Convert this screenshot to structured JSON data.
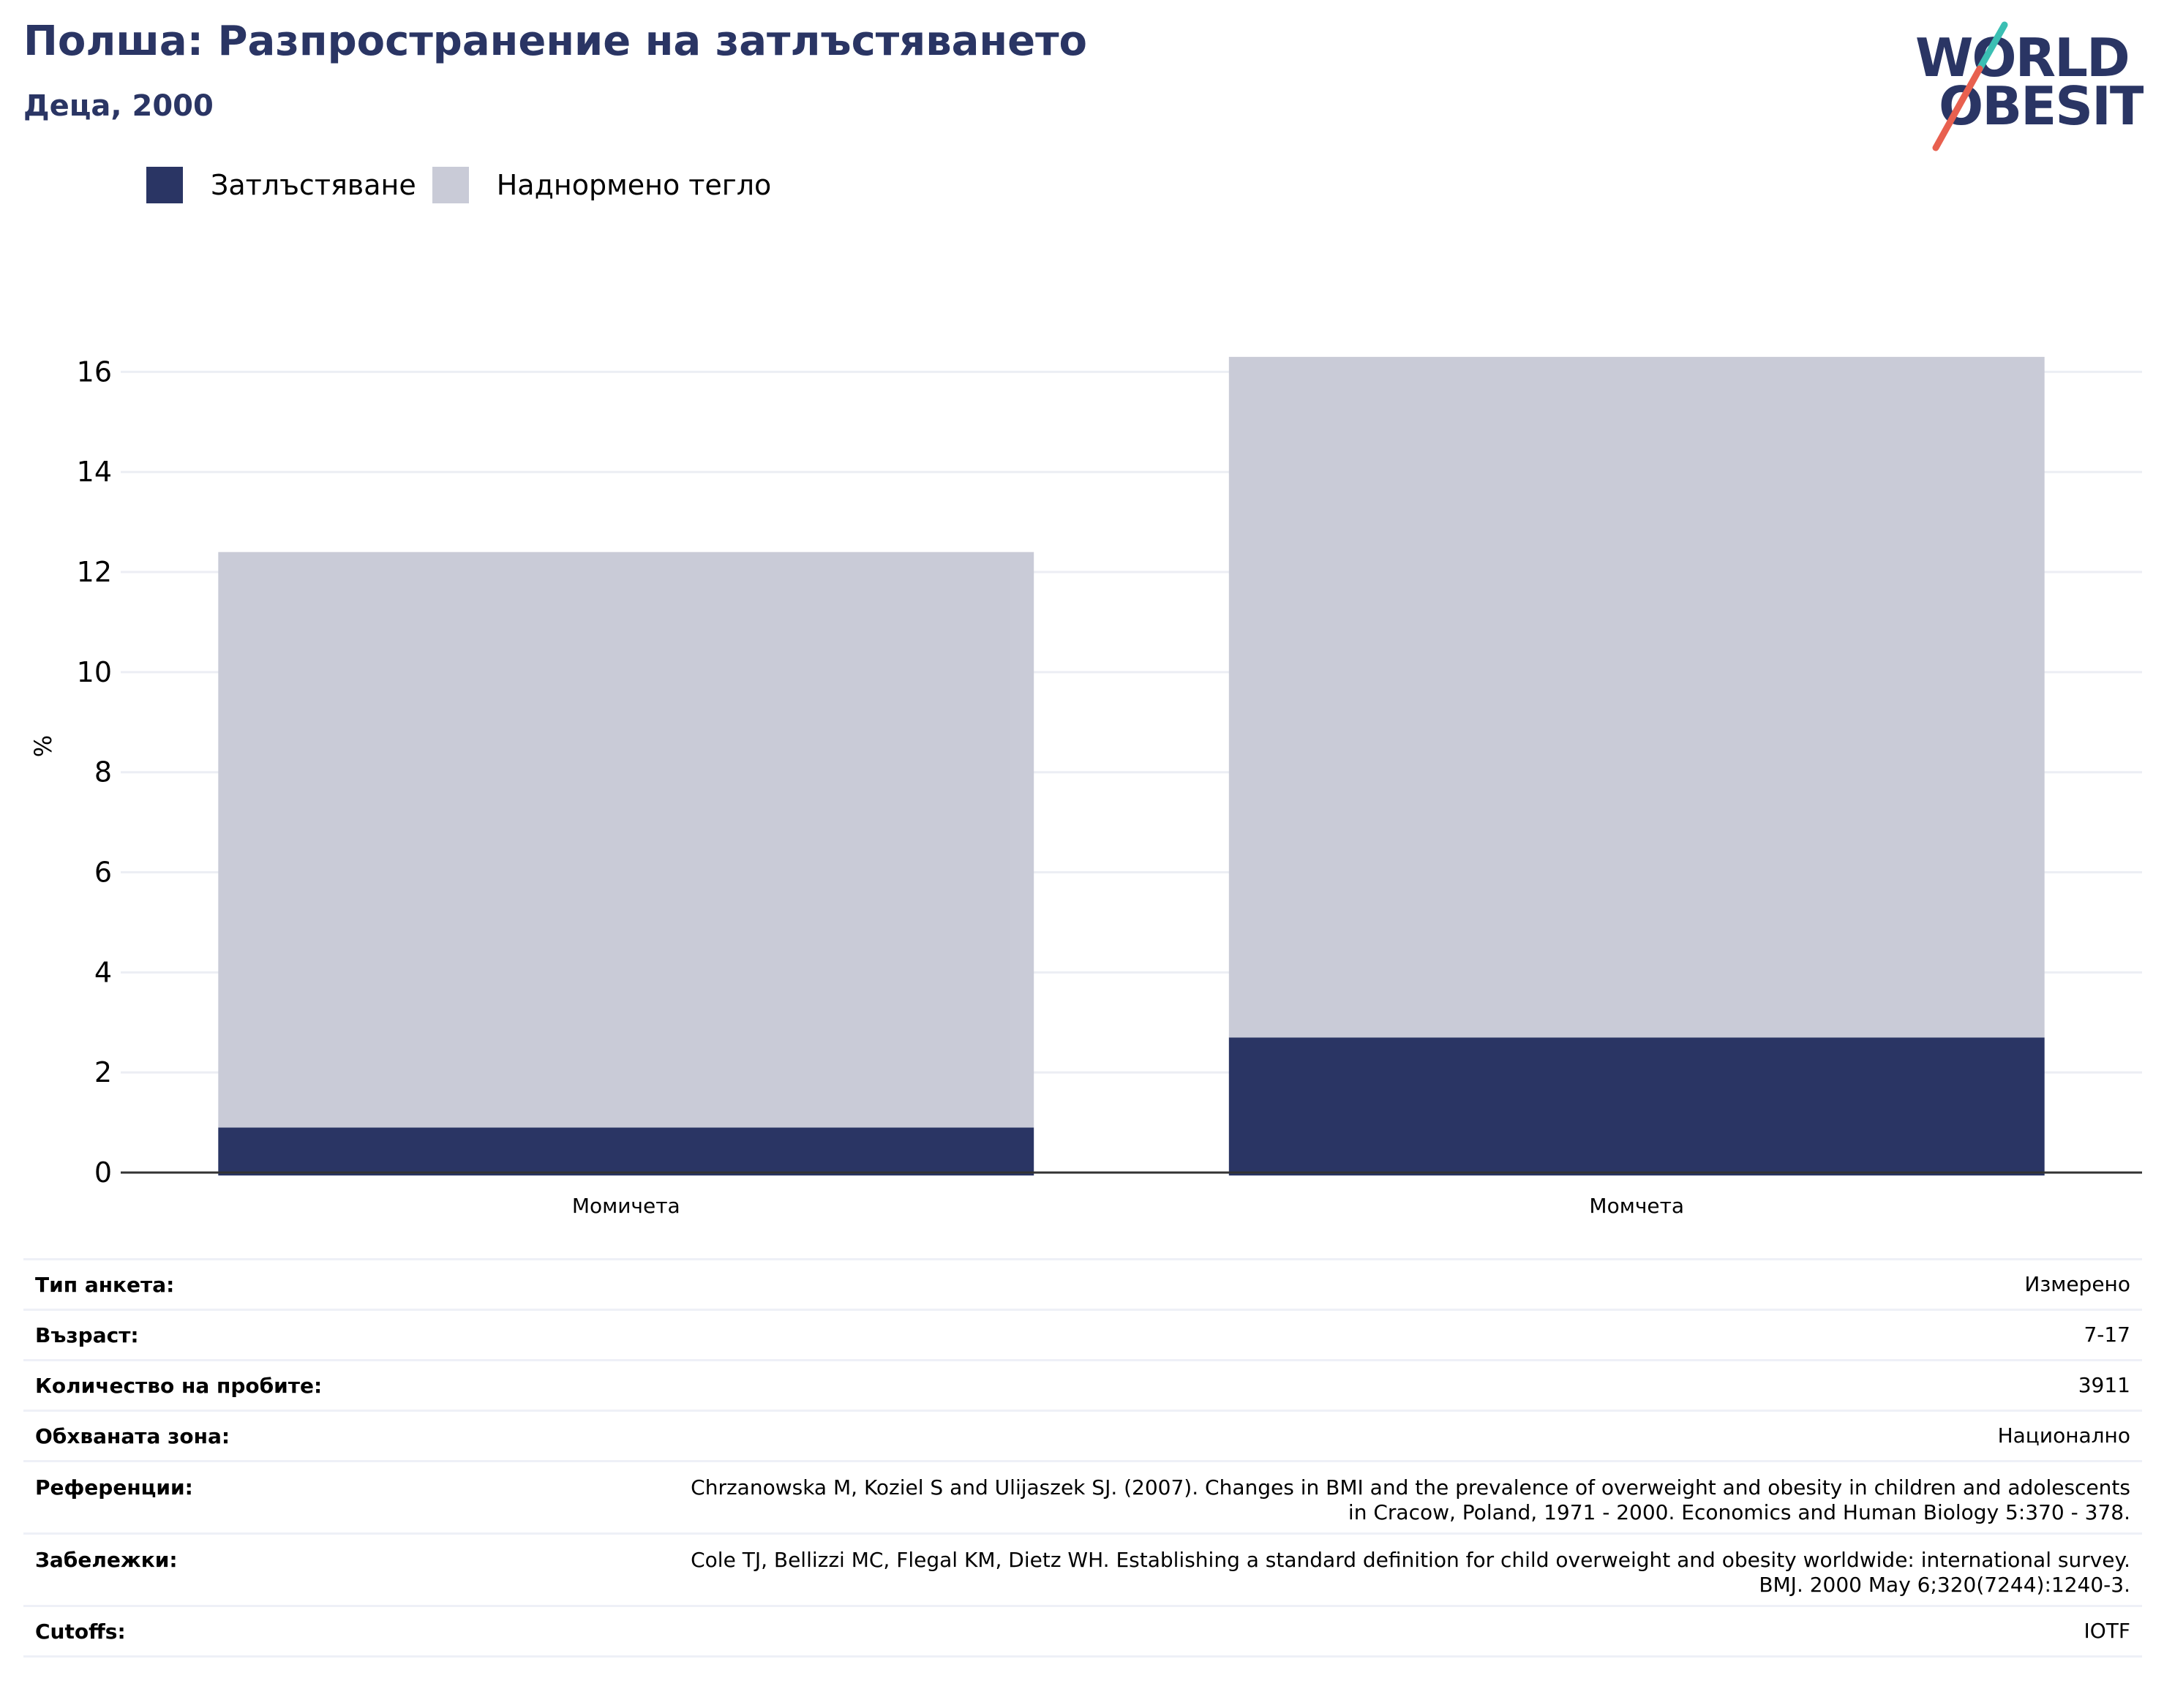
{
  "header": {
    "title": "Полша: Разпространение на затлъстяването",
    "subtitle": "Деца, 2000"
  },
  "logo": {
    "line1": "WORLD",
    "line2": "OBESITY",
    "accent_teal": "#3bbfb3",
    "accent_red": "#e8604f",
    "text_color": "#2a3564"
  },
  "colors": {
    "obesity": "#2a3564",
    "overweight": "#c9cbd7",
    "grid": "#eceef4",
    "axis": "#333333"
  },
  "chart_data": {
    "type": "bar",
    "stacked": true,
    "categories": [
      "Момичета",
      "Момчета"
    ],
    "series": [
      {
        "name": "Затлъстяване",
        "values": [
          0.9,
          2.7
        ]
      },
      {
        "name": "Наднормено тегло",
        "values": [
          11.5,
          13.6
        ]
      }
    ],
    "ylabel": "%",
    "ylim": [
      0,
      17
    ],
    "yticks": [
      0,
      2,
      4,
      6,
      8,
      10,
      12,
      14,
      16
    ],
    "grid": true,
    "legend": "top-left"
  },
  "meta": [
    {
      "label": "Тип анкета:",
      "value": "Измерено"
    },
    {
      "label": "Възраст:",
      "value": "7-17"
    },
    {
      "label": "Количество на пробите:",
      "value": "3911"
    },
    {
      "label": "Обхваната зона:",
      "value": "Национално"
    },
    {
      "label": "Референции:",
      "value_lines": [
        "Chrzanowska M, Koziel S and Ulijaszek SJ. (2007). Changes in BMI and the prevalence of overweight and obesity in children and adolescents",
        "in Cracow, Poland, 1971 - 2000. Economics and Human Biology 5:370 - 378."
      ]
    },
    {
      "label": "Забележки:",
      "value_lines": [
        "Cole TJ, Bellizzi MC, Flegal KM, Dietz WH. Establishing a standard definition for child overweight and obesity worldwide: international survey.",
        "BMJ. 2000 May 6;320(7244):1240-3."
      ]
    },
    {
      "label": "Cutoffs:",
      "value": "IOTF"
    }
  ]
}
